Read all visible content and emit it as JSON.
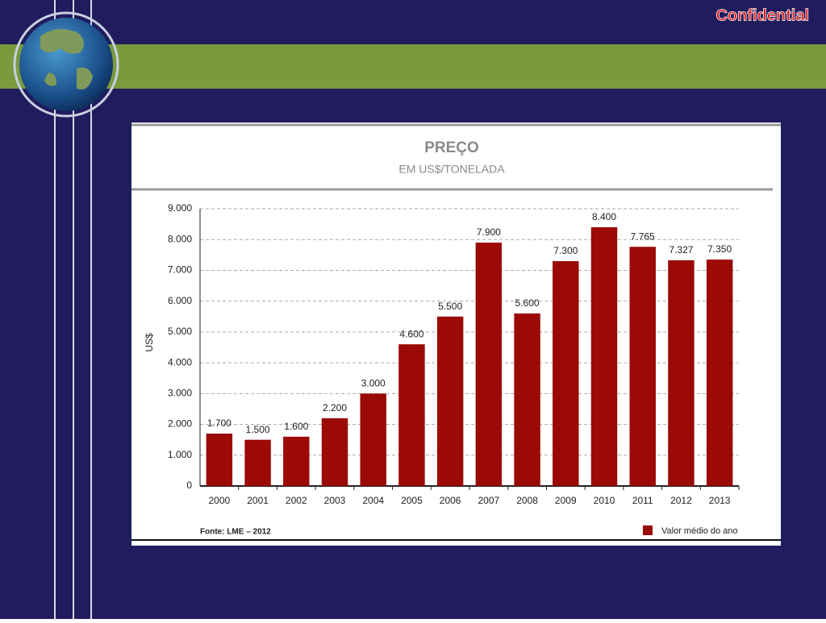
{
  "slide": {
    "label": "Confidential"
  },
  "chart_data": {
    "type": "bar",
    "title": "PREÇO",
    "subtitle": "EM US$/TONELADA",
    "y_label": "US$",
    "source": "Fonte: LME – 2012",
    "categories": [
      "2000",
      "2001",
      "2002",
      "2003",
      "2004",
      "2005",
      "2006",
      "2007",
      "2008",
      "2009",
      "2010",
      "2011",
      "2012",
      "2013"
    ],
    "series": [
      {
        "name": "Valor médio do ano",
        "color": "#9b0a05",
        "values": [
          1700,
          1500,
          1600,
          2200,
          3000,
          4600,
          5500,
          7900,
          5600,
          7300,
          8400,
          7765,
          7327,
          7350
        ],
        "value_labels": [
          "1.700",
          "1.500",
          "1.600",
          "2.200",
          "3.000",
          "4.600",
          "5.500",
          "7.900",
          "5.600",
          "7.300",
          "8.400",
          "7.765",
          "7.327",
          "7.350"
        ]
      }
    ],
    "ylim": [
      0,
      9000
    ],
    "yticks": [
      0,
      {
        "value": 1000,
        "label": "1.000"
      },
      {
        "value": 2000,
        "label": "2.000"
      },
      {
        "value": 3000,
        "label": "3.000"
      },
      {
        "value": 4000,
        "label": "4.000"
      },
      {
        "value": 5000,
        "label": "5.000"
      },
      {
        "value": 6000,
        "label": "6.000"
      },
      {
        "value": 7000,
        "label": "7.000"
      },
      {
        "value": 8000,
        "label": "8.000"
      },
      {
        "value": 9000,
        "label": "9.000"
      }
    ],
    "grid": true
  }
}
